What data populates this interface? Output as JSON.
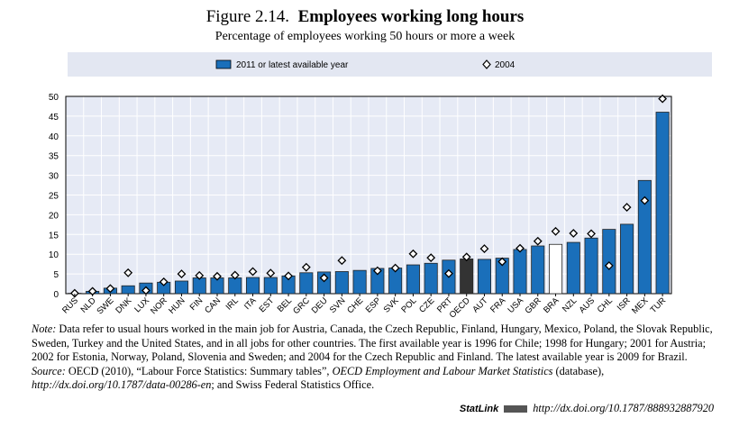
{
  "header": {
    "figure_label": "Figure 2.14.",
    "title": "Employees working long hours",
    "subtitle": "Percentage of employees working 50 hours or more a week"
  },
  "chart_data": {
    "type": "bar",
    "ylim": [
      0,
      50
    ],
    "yticks": [
      0,
      5,
      10,
      15,
      20,
      25,
      30,
      35,
      40,
      45,
      50
    ],
    "grid": true,
    "legend_placement": "top",
    "categories": [
      "RUS",
      "NLD",
      "SWE",
      "DNK",
      "LUX",
      "NOR",
      "HUN",
      "FIN",
      "CAN",
      "IRL",
      "ITA",
      "EST",
      "BEL",
      "GRC",
      "DEU",
      "SVN",
      "CHE",
      "ESP",
      "SVK",
      "POL",
      "CZE",
      "PRT",
      "OECD",
      "AUT",
      "FRA",
      "USA",
      "GBR",
      "BRA",
      "NZL",
      "AUS",
      "CHL",
      "ISR",
      "MEX",
      "TUR"
    ],
    "series": [
      {
        "name": "2011 or latest available year",
        "type": "bar",
        "color": "#1a6fba",
        "values": [
          0.1,
          0.6,
          1.4,
          2.0,
          2.7,
          2.9,
          3.2,
          4.0,
          4.0,
          4.0,
          4.1,
          4.1,
          4.5,
          5.3,
          5.5,
          5.6,
          5.9,
          6.4,
          6.5,
          7.3,
          7.7,
          8.5,
          8.8,
          8.7,
          9.0,
          11.2,
          12.1,
          12.5,
          13.0,
          14.1,
          16.3,
          17.6,
          28.7,
          46.0
        ]
      },
      {
        "name": "2004",
        "type": "marker",
        "marker": "diamond",
        "color": "#ffffff",
        "values": [
          0.1,
          0.6,
          1.3,
          5.3,
          0.8,
          3.0,
          5.0,
          4.6,
          4.4,
          4.7,
          5.6,
          5.2,
          4.5,
          6.7,
          4.0,
          8.4,
          null,
          5.8,
          6.5,
          10.1,
          9.1,
          5.1,
          9.3,
          11.4,
          8.1,
          11.5,
          13.3,
          15.8,
          15.3,
          15.2,
          7.1,
          21.9,
          23.6,
          49.4
        ]
      }
    ],
    "highlight_colors": {
      "OECD": "#333333",
      "BRA": "#ffffff"
    }
  },
  "notes": {
    "note_label": "Note:",
    "note_text": "Data refer to usual hours worked in the main job for Austria, Canada, the Czech Republic, Finland, Hungary, Mexico, Poland, the Slovak Republic, Sweden, Turkey and the United States, and in all jobs for other countries. The first available year is 1996 for Chile; 1998 for Hungary; 2001 for Austria; 2002 for Estonia, Norway, Poland, Slovenia and Sweden; and 2004 for the Czech Republic and Finland. The latest available year is 2009 for Brazil.",
    "source_label": "Source:",
    "source_text_1": "OECD (2010), “Labour Force Statistics: Summary tables”,",
    "source_italic_1": "OECD Employment and Labour Market Statistics",
    "source_text_2": "(database),",
    "source_italic_2": "http://dx.doi.org/10.1787/data-00286-en",
    "source_text_3": "; and Swiss Federal Statistics Office."
  },
  "statlink": {
    "label": "StatLink",
    "url": "http://dx.doi.org/10.1787/888932887920"
  }
}
